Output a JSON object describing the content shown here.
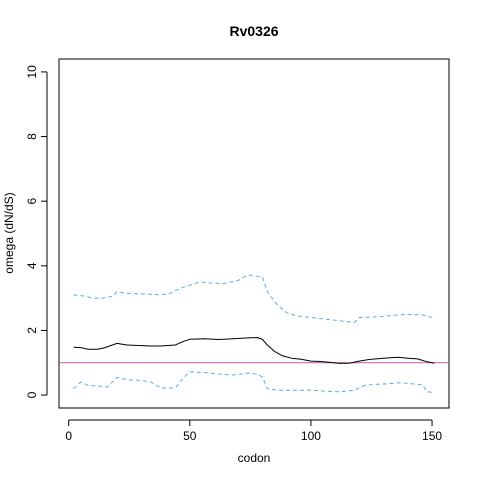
{
  "chart_data": {
    "type": "line",
    "title": "Rv0326",
    "xlabel": "codon",
    "ylabel": "omega (dN/dS)",
    "xlim": [
      -4,
      157
    ],
    "ylim": [
      -0.4,
      10.4
    ],
    "xticks": [
      0,
      50,
      100,
      150
    ],
    "yticks": [
      0,
      2,
      4,
      6,
      8,
      10
    ],
    "grid": false,
    "legend": "none",
    "reference_line": {
      "y": 1,
      "color": "#c15aa6"
    },
    "colors": {
      "estimate": "#000000",
      "bounds": "#5aaee3"
    },
    "series": [
      {
        "role": "estimate",
        "style": "solid",
        "x": [
          2,
          5,
          8,
          12,
          15,
          18,
          20,
          24,
          30,
          34,
          38,
          44,
          47,
          50,
          56,
          62,
          68,
          74,
          78,
          80,
          82,
          85,
          88,
          92,
          96,
          100,
          104,
          108,
          112,
          116,
          120,
          124,
          128,
          132,
          136,
          140,
          144,
          148,
          151
        ],
        "y": [
          1.48,
          1.47,
          1.42,
          1.42,
          1.47,
          1.55,
          1.6,
          1.55,
          1.53,
          1.52,
          1.52,
          1.55,
          1.65,
          1.73,
          1.74,
          1.72,
          1.74,
          1.77,
          1.78,
          1.72,
          1.55,
          1.35,
          1.22,
          1.14,
          1.11,
          1.05,
          1.04,
          1.01,
          0.98,
          0.99,
          1.05,
          1.1,
          1.13,
          1.15,
          1.17,
          1.14,
          1.12,
          1.03,
          0.99
        ]
      },
      {
        "role": "upper bound",
        "style": "dashed",
        "x": [
          2,
          6,
          10,
          14,
          18,
          20,
          24,
          30,
          34,
          38,
          42,
          46,
          50,
          54,
          58,
          64,
          70,
          74,
          80,
          82,
          86,
          90,
          94,
          100,
          106,
          112,
          118,
          120,
          126,
          132,
          136,
          140,
          146,
          151
        ],
        "y": [
          3.1,
          3.07,
          3.0,
          3.0,
          3.05,
          3.2,
          3.15,
          3.13,
          3.12,
          3.1,
          3.15,
          3.3,
          3.4,
          3.5,
          3.47,
          3.45,
          3.55,
          3.72,
          3.65,
          3.2,
          2.8,
          2.55,
          2.45,
          2.4,
          2.35,
          2.3,
          2.25,
          2.4,
          2.42,
          2.45,
          2.48,
          2.5,
          2.48,
          2.38
        ]
      },
      {
        "role": "lower bound",
        "style": "dashed",
        "x": [
          2,
          5,
          8,
          12,
          16,
          20,
          24,
          30,
          34,
          38,
          44,
          47,
          50,
          56,
          62,
          68,
          74,
          78,
          80,
          82,
          86,
          92,
          100,
          106,
          112,
          118,
          122,
          126,
          132,
          136,
          140,
          146,
          148,
          151
        ],
        "y": [
          0.2,
          0.4,
          0.3,
          0.28,
          0.25,
          0.55,
          0.48,
          0.45,
          0.4,
          0.22,
          0.22,
          0.5,
          0.72,
          0.7,
          0.65,
          0.62,
          0.68,
          0.65,
          0.55,
          0.2,
          0.15,
          0.15,
          0.15,
          0.12,
          0.1,
          0.15,
          0.3,
          0.33,
          0.35,
          0.38,
          0.36,
          0.32,
          0.1,
          0.08
        ]
      }
    ]
  }
}
